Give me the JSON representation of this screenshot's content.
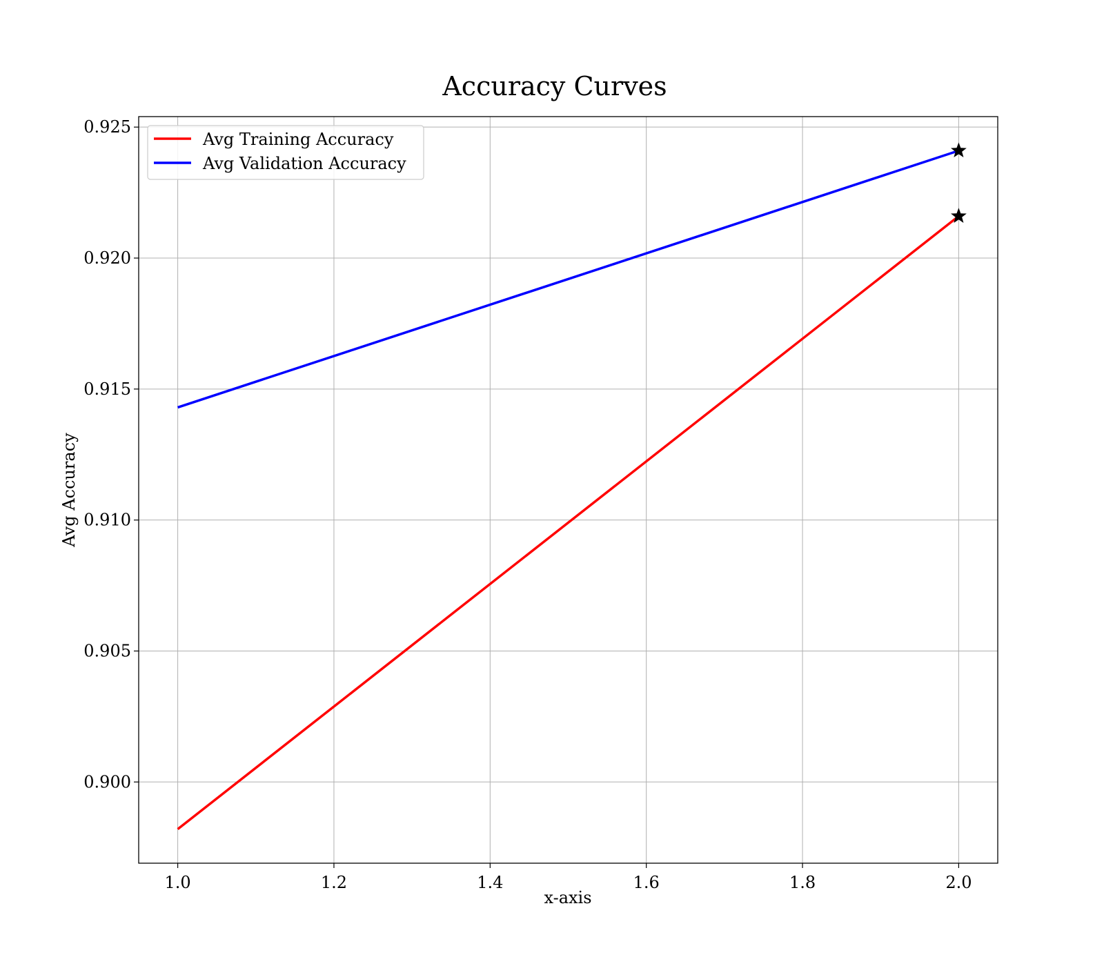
{
  "chart_data": {
    "type": "line",
    "title": "Accuracy Curves",
    "xlabel": "x-axis",
    "ylabel": "Avg Accuracy",
    "xlim": [
      0.95,
      2.05
    ],
    "ylim": [
      0.8969,
      0.9254
    ],
    "x_ticks": [
      1.0,
      1.2,
      1.4,
      1.6,
      1.8,
      2.0
    ],
    "y_ticks": [
      0.9,
      0.905,
      0.91,
      0.915,
      0.92,
      0.925
    ],
    "x_tick_labels": [
      "1.0",
      "1.2",
      "1.4",
      "1.6",
      "1.8",
      "2.0"
    ],
    "y_tick_labels": [
      "0.900",
      "0.905",
      "0.910",
      "0.915",
      "0.920",
      "0.925"
    ],
    "grid": true,
    "legend_position": "upper-left",
    "series": [
      {
        "name": "Avg Training Accuracy",
        "color": "#ff0000",
        "x": [
          1.0,
          2.0
        ],
        "y": [
          0.8982,
          0.9216
        ],
        "best_marker": {
          "x": 2.0,
          "y": 0.9216,
          "symbol": "star"
        }
      },
      {
        "name": "Avg Validation Accuracy",
        "color": "#0000ff",
        "x": [
          1.0,
          2.0
        ],
        "y": [
          0.9143,
          0.9241
        ],
        "best_marker": {
          "x": 2.0,
          "y": 0.9241,
          "symbol": "star"
        }
      }
    ]
  }
}
